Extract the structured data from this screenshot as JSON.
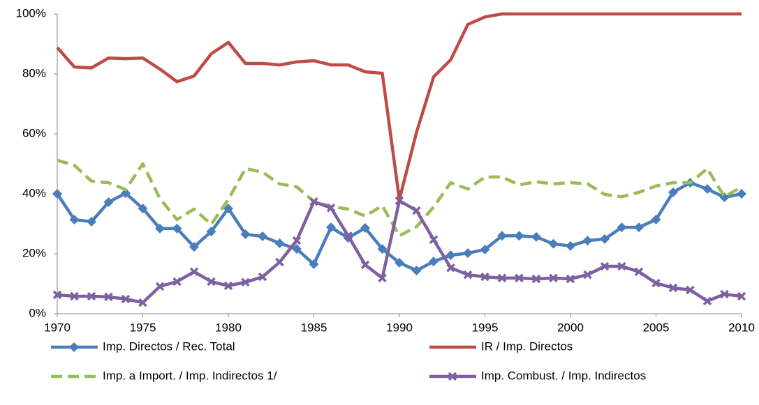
{
  "chart_data": {
    "type": "line",
    "x": [
      1970,
      1971,
      1972,
      1973,
      1974,
      1975,
      1976,
      1977,
      1978,
      1979,
      1980,
      1981,
      1982,
      1983,
      1984,
      1985,
      1986,
      1987,
      1988,
      1989,
      1990,
      1991,
      1992,
      1993,
      1994,
      1995,
      1996,
      1997,
      1998,
      1999,
      2000,
      2001,
      2002,
      2003,
      2004,
      2005,
      2006,
      2007,
      2008,
      2009,
      2010
    ],
    "xlim": [
      1970,
      2010
    ],
    "xticks": [
      1970,
      1975,
      1980,
      1985,
      1990,
      1995,
      2000,
      2005,
      2010
    ],
    "ylim": [
      0,
      100
    ],
    "yticks": [
      {
        "value": 0,
        "label": "0%"
      },
      {
        "value": 20,
        "label": "20%"
      },
      {
        "value": 40,
        "label": "40%"
      },
      {
        "value": 60,
        "label": "60%"
      },
      {
        "value": 80,
        "label": "80%"
      },
      {
        "value": 100,
        "label": "100%"
      }
    ],
    "grid": false,
    "legend": "bottom",
    "series": [
      {
        "name": "Imp. Directos / Rec. Total",
        "color": "#4a7ebb",
        "marker": "diamond",
        "dashed": false,
        "values": [
          40,
          31.4,
          30.7,
          37.2,
          40.2,
          35.1,
          28.4,
          28.4,
          22.3,
          27.4,
          35.1,
          26.5,
          25.8,
          23.5,
          21.6,
          16.5,
          28.8,
          25.3,
          28.6,
          21.6,
          17,
          14.4,
          17.4,
          19.5,
          20.2,
          21.4,
          26,
          26,
          25.6,
          23.3,
          22.6,
          24.4,
          24.9,
          28.8,
          28.8,
          31.4,
          40.5,
          43.7,
          41.6,
          38.8,
          40
        ]
      },
      {
        "name": "IR / Imp. Directos",
        "color": "#be4b48",
        "marker": "none",
        "dashed": false,
        "values": [
          88.8,
          82.3,
          82,
          85.3,
          85.1,
          85.3,
          81.6,
          77.4,
          79.3,
          86.7,
          90.5,
          83.5,
          83.5,
          83,
          84,
          84.4,
          83,
          83,
          80.7,
          80.2,
          38.1,
          60.5,
          79,
          84.7,
          96.5,
          99,
          100,
          100,
          100,
          100,
          100,
          100,
          100,
          100,
          100,
          100,
          100,
          100,
          100,
          100,
          100
        ]
      },
      {
        "name": "Imp. a Import. / Imp. Indirectos 1/",
        "color": "#9bbb59",
        "marker": "none",
        "dashed": true,
        "values": [
          51.2,
          49.5,
          44.2,
          43.7,
          41.4,
          50,
          38.4,
          31.4,
          34.9,
          29.8,
          38.1,
          48.4,
          47.2,
          43.3,
          42.3,
          37.4,
          35.8,
          34.9,
          32.6,
          36,
          26,
          29,
          35.6,
          43.7,
          41.6,
          45.6,
          45.6,
          43,
          44,
          43.3,
          43.7,
          43.3,
          39.8,
          39,
          40.5,
          42.6,
          43.7,
          43.7,
          48.4,
          39,
          42.3
        ]
      },
      {
        "name": "Imp. Combust. / Imp. Indirectos",
        "color": "#7d60a0",
        "marker": "x",
        "dashed": false,
        "values": [
          6.3,
          5.8,
          5.8,
          5.6,
          4.9,
          3.7,
          9.1,
          10.7,
          14,
          10.7,
          9.3,
          10.5,
          12.3,
          17.2,
          24.4,
          37.4,
          35.3,
          26,
          16.3,
          11.9,
          37.7,
          34.4,
          24.7,
          15.3,
          13,
          12.3,
          11.9,
          11.9,
          11.6,
          11.9,
          11.6,
          13,
          15.8,
          15.8,
          14,
          10.2,
          8.6,
          7.9,
          4.2,
          6.5,
          5.8
        ]
      }
    ]
  }
}
